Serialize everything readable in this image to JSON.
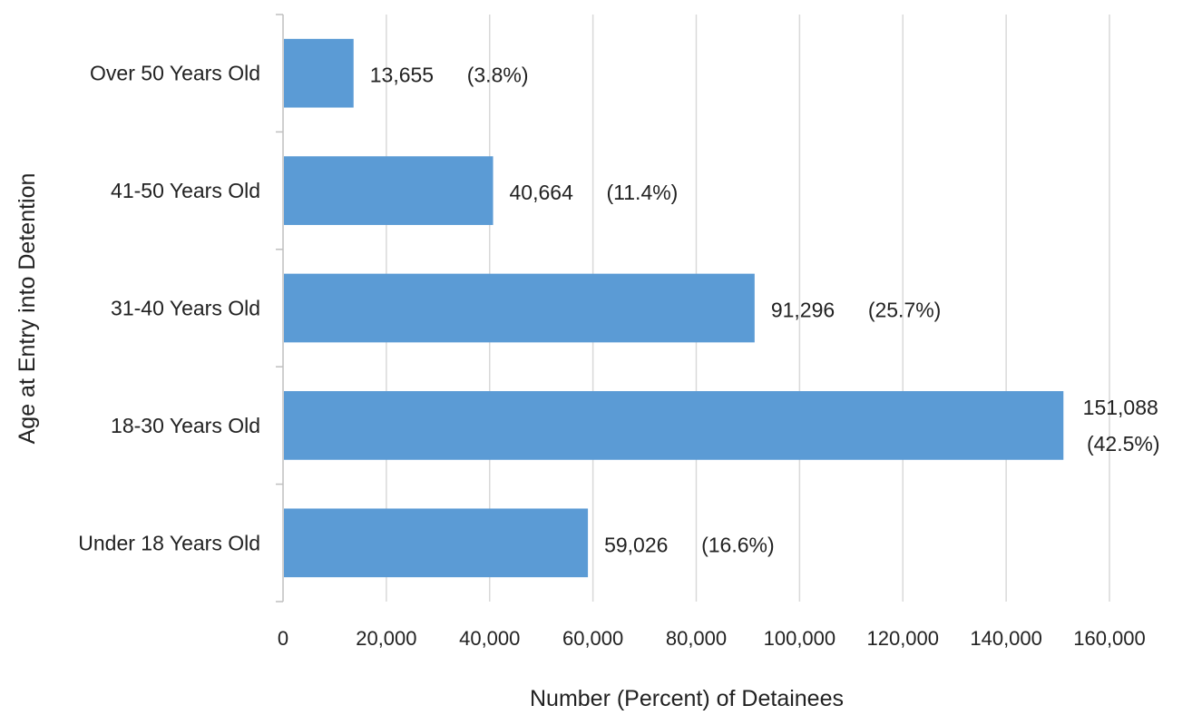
{
  "chart_data": {
    "type": "bar",
    "orientation": "horizontal",
    "xlabel": "Number (Percent) of Detainees",
    "ylabel": "Age at Entry into Detention",
    "xlim": [
      0,
      160000
    ],
    "x_ticks": [
      0,
      20000,
      40000,
      60000,
      80000,
      100000,
      120000,
      140000,
      160000
    ],
    "x_tick_labels": [
      "0",
      "20,000",
      "40,000",
      "60,000",
      "80,000",
      "100,000",
      "120,000",
      "140,000",
      "160,000"
    ],
    "grid": "vertical",
    "legend": "none",
    "bar_color": "#5b9bd5",
    "categories": [
      "Over 50 Years Old",
      "41-50 Years Old",
      "31-40 Years Old",
      "18-30 Years Old",
      "Under 18 Years Old"
    ],
    "values": [
      13655,
      40664,
      91296,
      151088,
      59026
    ],
    "value_labels": [
      "13,655",
      "40,664",
      "91,296",
      "151,088",
      "59,026"
    ],
    "percent_labels": [
      "(3.8%)",
      "(11.4%)",
      "(25.7%)",
      "(42.5%)",
      "(16.6%)"
    ]
  }
}
